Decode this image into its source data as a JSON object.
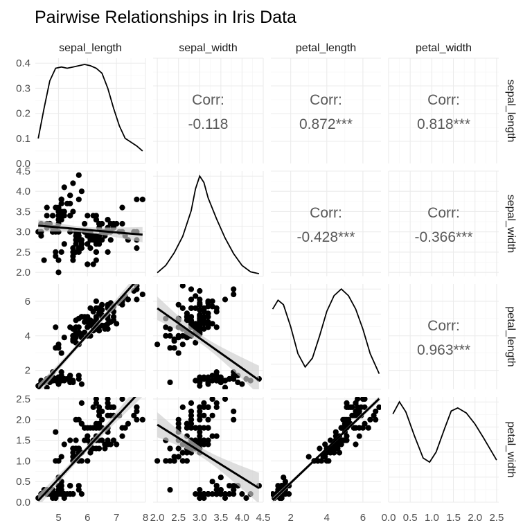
{
  "chart_data": {
    "type": "scatter-matrix",
    "title": "Pairwise Relationships in Iris Data",
    "variables": [
      "sepal_length",
      "sepal_width",
      "petal_length",
      "petal_width"
    ],
    "axes": {
      "sepal_length": {
        "range": [
          4.2,
          8.0
        ],
        "ticks": [
          "5",
          "6",
          "7",
          "8"
        ],
        "tick_values": [
          5,
          6,
          7,
          8
        ]
      },
      "sepal_width": {
        "range": [
          1.9,
          4.5
        ],
        "ticks": [
          "2.0",
          "2.5",
          "3.0",
          "3.5",
          "4.0",
          "4.5"
        ],
        "tick_values": [
          2.0,
          2.5,
          3.0,
          3.5,
          4.0,
          4.5
        ]
      },
      "petal_length": {
        "range": [
          0.9,
          7.0
        ],
        "ticks": [
          "2",
          "4",
          "6"
        ],
        "tick_values": [
          2,
          4,
          6
        ]
      },
      "petal_width": {
        "range": [
          0.0,
          2.55
        ],
        "ticks": [
          "0.0",
          "0.5",
          "1.0",
          "1.5",
          "2.0",
          "2.5"
        ],
        "tick_values": [
          0.0,
          0.5,
          1.0,
          1.5,
          2.0,
          2.5
        ]
      }
    },
    "density_axis": {
      "range": [
        0.0,
        0.42
      ],
      "ticks": [
        "0.0",
        "0.1",
        "0.2",
        "0.3",
        "0.4"
      ],
      "tick_values": [
        0.0,
        0.1,
        0.2,
        0.3,
        0.4
      ]
    },
    "correlations": [
      {
        "row": "sepal_length",
        "col": "sepal_width",
        "label": "Corr:",
        "value": "-0.118"
      },
      {
        "row": "sepal_length",
        "col": "petal_length",
        "label": "Corr:",
        "value": "0.872***"
      },
      {
        "row": "sepal_length",
        "col": "petal_width",
        "label": "Corr:",
        "value": "0.818***"
      },
      {
        "row": "sepal_width",
        "col": "petal_length",
        "label": "Corr:",
        "value": "-0.428***"
      },
      {
        "row": "sepal_width",
        "col": "petal_width",
        "label": "Corr:",
        "value": "-0.366***"
      },
      {
        "row": "petal_length",
        "col": "petal_width",
        "label": "Corr:",
        "value": "0.963***"
      }
    ],
    "densities": {
      "sepal_length": [
        [
          4.3,
          0.1
        ],
        [
          4.5,
          0.22
        ],
        [
          4.7,
          0.33
        ],
        [
          4.9,
          0.38
        ],
        [
          5.1,
          0.385
        ],
        [
          5.3,
          0.38
        ],
        [
          5.5,
          0.385
        ],
        [
          5.7,
          0.39
        ],
        [
          5.9,
          0.395
        ],
        [
          6.1,
          0.39
        ],
        [
          6.3,
          0.38
        ],
        [
          6.5,
          0.36
        ],
        [
          6.7,
          0.3
        ],
        [
          6.9,
          0.22
        ],
        [
          7.1,
          0.15
        ],
        [
          7.3,
          0.1
        ],
        [
          7.5,
          0.085
        ],
        [
          7.7,
          0.07
        ],
        [
          7.9,
          0.05
        ]
      ],
      "sepal_width": [
        [
          2.0,
          0.04
        ],
        [
          2.2,
          0.12
        ],
        [
          2.4,
          0.26
        ],
        [
          2.6,
          0.44
        ],
        [
          2.8,
          0.72
        ],
        [
          2.9,
          0.96
        ],
        [
          3.0,
          1.1
        ],
        [
          3.1,
          1.03
        ],
        [
          3.2,
          0.86
        ],
        [
          3.4,
          0.63
        ],
        [
          3.6,
          0.42
        ],
        [
          3.8,
          0.25
        ],
        [
          4.0,
          0.12
        ],
        [
          4.2,
          0.05
        ],
        [
          4.4,
          0.03
        ]
      ],
      "petal_length": [
        [
          1.0,
          0.18
        ],
        [
          1.3,
          0.2
        ],
        [
          1.6,
          0.19
        ],
        [
          2.0,
          0.14
        ],
        [
          2.4,
          0.08
        ],
        [
          2.8,
          0.05
        ],
        [
          3.2,
          0.07
        ],
        [
          3.6,
          0.12
        ],
        [
          4.0,
          0.175
        ],
        [
          4.4,
          0.21
        ],
        [
          4.8,
          0.225
        ],
        [
          5.2,
          0.21
        ],
        [
          5.6,
          0.18
        ],
        [
          6.0,
          0.135
        ],
        [
          6.4,
          0.08
        ],
        [
          6.9,
          0.035
        ]
      ],
      "petal_width": [
        [
          0.1,
          0.44
        ],
        [
          0.25,
          0.5
        ],
        [
          0.4,
          0.45
        ],
        [
          0.6,
          0.33
        ],
        [
          0.8,
          0.22
        ],
        [
          0.95,
          0.2
        ],
        [
          1.1,
          0.25
        ],
        [
          1.3,
          0.37
        ],
        [
          1.45,
          0.455
        ],
        [
          1.6,
          0.47
        ],
        [
          1.8,
          0.445
        ],
        [
          2.0,
          0.39
        ],
        [
          2.2,
          0.32
        ],
        [
          2.5,
          0.21
        ]
      ]
    },
    "observations": {
      "sepal_length": [
        5.1,
        4.9,
        4.7,
        4.6,
        5.0,
        5.4,
        4.6,
        5.0,
        4.4,
        4.9,
        5.4,
        4.8,
        4.8,
        4.3,
        5.8,
        5.7,
        5.4,
        5.1,
        5.7,
        5.1,
        5.4,
        5.1,
        4.6,
        5.1,
        4.8,
        5.0,
        5.0,
        5.2,
        5.2,
        4.7,
        4.8,
        5.4,
        5.2,
        5.5,
        4.9,
        5.0,
        5.5,
        4.9,
        4.4,
        5.1,
        5.0,
        4.5,
        4.4,
        5.0,
        5.1,
        4.8,
        5.1,
        4.6,
        5.3,
        5.0,
        7.0,
        6.4,
        6.9,
        5.5,
        6.5,
        5.7,
        6.3,
        4.9,
        6.6,
        5.2,
        5.0,
        5.9,
        6.0,
        6.1,
        5.6,
        6.7,
        5.6,
        5.8,
        6.2,
        5.6,
        5.9,
        6.1,
        6.3,
        6.1,
        6.4,
        6.6,
        6.8,
        6.7,
        6.0,
        5.7,
        5.5,
        5.5,
        5.8,
        6.0,
        5.4,
        6.0,
        6.7,
        6.3,
        5.6,
        5.5,
        5.5,
        6.1,
        5.8,
        5.0,
        5.6,
        5.7,
        5.7,
        6.2,
        5.1,
        5.7,
        6.3,
        5.8,
        7.1,
        6.3,
        6.5,
        7.6,
        4.9,
        7.3,
        6.7,
        7.2,
        6.5,
        6.4,
        6.8,
        5.7,
        5.8,
        6.4,
        6.5,
        7.7,
        7.7,
        6.0,
        6.9,
        5.6,
        7.7,
        6.3,
        6.7,
        7.2,
        6.2,
        6.1,
        6.4,
        7.2,
        7.4,
        7.9,
        6.4,
        6.3,
        6.1,
        7.7,
        6.3,
        6.4,
        6.0,
        6.9,
        6.7,
        6.9,
        5.8,
        6.8,
        6.7,
        6.7,
        6.3,
        6.5,
        6.2,
        5.9
      ],
      "sepal_width": [
        3.5,
        3.0,
        3.2,
        3.1,
        3.6,
        3.9,
        3.4,
        3.4,
        2.9,
        3.1,
        3.7,
        3.4,
        3.0,
        3.0,
        4.0,
        4.4,
        3.9,
        3.5,
        3.8,
        3.8,
        3.4,
        3.7,
        3.6,
        3.3,
        3.4,
        3.0,
        3.4,
        3.5,
        3.4,
        3.2,
        3.1,
        3.4,
        4.1,
        4.2,
        3.1,
        3.2,
        3.5,
        3.6,
        3.0,
        3.4,
        3.5,
        2.3,
        3.2,
        3.5,
        3.8,
        3.0,
        3.8,
        3.2,
        3.7,
        3.3,
        3.2,
        3.2,
        3.1,
        2.3,
        2.8,
        2.8,
        3.3,
        2.4,
        2.9,
        2.7,
        2.0,
        3.0,
        2.2,
        2.9,
        2.9,
        3.1,
        3.0,
        2.7,
        2.2,
        2.5,
        3.2,
        2.8,
        2.5,
        2.8,
        2.9,
        3.0,
        2.8,
        3.0,
        2.9,
        2.6,
        2.4,
        2.4,
        2.7,
        2.7,
        3.0,
        3.4,
        3.1,
        2.3,
        3.0,
        2.5,
        2.6,
        3.0,
        2.6,
        2.3,
        2.7,
        3.0,
        2.9,
        2.9,
        2.5,
        2.8,
        3.3,
        2.7,
        3.0,
        2.9,
        3.0,
        3.0,
        2.5,
        2.9,
        2.5,
        3.6,
        3.2,
        2.7,
        3.0,
        2.5,
        2.8,
        3.2,
        3.0,
        3.8,
        2.6,
        2.2,
        3.2,
        2.8,
        2.8,
        2.7,
        3.3,
        3.2,
        2.8,
        3.0,
        2.8,
        3.0,
        2.8,
        3.8,
        2.8,
        2.8,
        2.6,
        3.0,
        3.4,
        3.1,
        3.0,
        3.1,
        3.1,
        3.1,
        2.7,
        3.2,
        3.3,
        3.0,
        2.5,
        3.0,
        3.4,
        3.0
      ],
      "petal_length": [
        1.4,
        1.4,
        1.3,
        1.5,
        1.4,
        1.7,
        1.4,
        1.5,
        1.4,
        1.5,
        1.5,
        1.6,
        1.4,
        1.1,
        1.2,
        1.5,
        1.3,
        1.4,
        1.7,
        1.5,
        1.7,
        1.5,
        1.0,
        1.7,
        1.9,
        1.6,
        1.6,
        1.5,
        1.4,
        1.6,
        1.6,
        1.5,
        1.5,
        1.4,
        1.5,
        1.2,
        1.3,
        1.4,
        1.3,
        1.5,
        1.3,
        1.3,
        1.3,
        1.6,
        1.9,
        1.4,
        1.6,
        1.4,
        1.5,
        1.4,
        4.7,
        4.5,
        4.9,
        4.0,
        4.6,
        4.5,
        4.7,
        3.3,
        4.6,
        3.9,
        3.5,
        4.2,
        4.0,
        4.7,
        3.6,
        4.4,
        4.5,
        4.1,
        4.5,
        3.9,
        4.8,
        4.0,
        4.9,
        4.7,
        4.3,
        4.4,
        4.8,
        5.0,
        4.5,
        3.5,
        3.8,
        3.7,
        3.9,
        5.1,
        4.5,
        4.5,
        4.7,
        4.4,
        4.1,
        4.0,
        4.4,
        4.6,
        4.0,
        3.3,
        4.2,
        4.2,
        4.2,
        4.3,
        3.0,
        4.1,
        6.0,
        5.1,
        5.9,
        5.6,
        5.8,
        6.6,
        4.5,
        6.3,
        5.8,
        6.1,
        5.1,
        5.3,
        5.5,
        5.0,
        5.1,
        5.3,
        5.5,
        6.7,
        6.9,
        5.0,
        5.7,
        4.9,
        6.7,
        4.9,
        5.7,
        6.0,
        4.8,
        4.9,
        5.6,
        5.8,
        6.1,
        6.4,
        5.6,
        5.1,
        5.6,
        6.1,
        5.6,
        5.5,
        4.8,
        5.4,
        5.6,
        5.1,
        5.1,
        5.9,
        5.7,
        5.2,
        5.0,
        5.2,
        5.4,
        5.1
      ],
      "petal_width": [
        0.2,
        0.2,
        0.2,
        0.2,
        0.2,
        0.4,
        0.3,
        0.2,
        0.2,
        0.1,
        0.2,
        0.2,
        0.1,
        0.1,
        0.2,
        0.4,
        0.4,
        0.3,
        0.3,
        0.3,
        0.2,
        0.4,
        0.2,
        0.5,
        0.2,
        0.2,
        0.4,
        0.2,
        0.2,
        0.2,
        0.2,
        0.4,
        0.1,
        0.2,
        0.2,
        0.2,
        0.2,
        0.1,
        0.2,
        0.2,
        0.3,
        0.3,
        0.2,
        0.6,
        0.4,
        0.3,
        0.2,
        0.2,
        0.2,
        0.2,
        1.4,
        1.5,
        1.5,
        1.3,
        1.5,
        1.3,
        1.6,
        1.0,
        1.3,
        1.4,
        1.0,
        1.5,
        1.0,
        1.4,
        1.3,
        1.4,
        1.5,
        1.0,
        1.5,
        1.1,
        1.8,
        1.3,
        1.5,
        1.2,
        1.3,
        1.4,
        1.4,
        1.7,
        1.5,
        1.0,
        1.1,
        1.0,
        1.2,
        1.6,
        1.5,
        1.6,
        1.5,
        1.3,
        1.3,
        1.3,
        1.2,
        1.4,
        1.2,
        1.0,
        1.3,
        1.2,
        1.3,
        1.3,
        1.1,
        1.3,
        2.5,
        1.9,
        2.1,
        1.8,
        2.2,
        2.1,
        1.7,
        1.8,
        1.8,
        2.5,
        2.0,
        1.9,
        2.1,
        2.0,
        2.4,
        2.3,
        1.8,
        2.2,
        2.3,
        1.5,
        2.3,
        2.0,
        2.0,
        1.8,
        2.1,
        1.8,
        1.8,
        1.8,
        2.1,
        1.6,
        1.9,
        2.0,
        2.2,
        1.5,
        1.4,
        2.3,
        2.4,
        1.8,
        1.8,
        2.1,
        2.4,
        2.3,
        1.9,
        2.3,
        2.5,
        2.3,
        1.9,
        2.0,
        2.3,
        1.8
      ]
    },
    "point_color": "#000000",
    "line_color": "#000000",
    "band_color": "#cccccc",
    "text_color": "#595959",
    "grid": true
  }
}
